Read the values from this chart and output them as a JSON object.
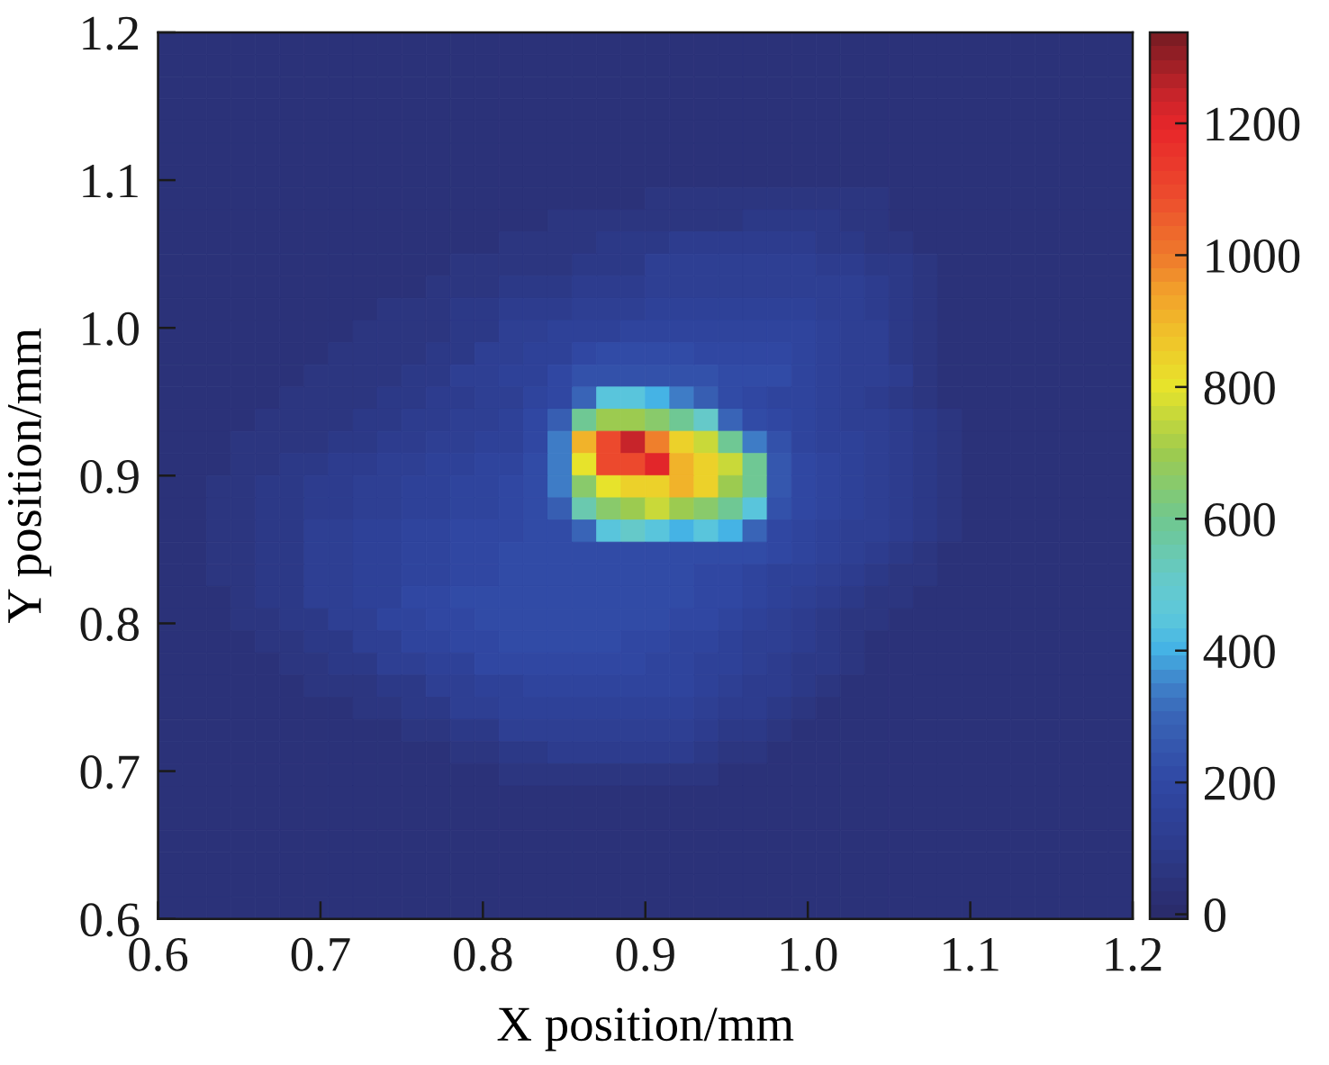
{
  "chart_data": {
    "type": "heatmap",
    "xlabel": "X position/mm",
    "ylabel": "Y position/mm",
    "x": [
      0.6075,
      0.6225,
      0.6375,
      0.6525,
      0.6675,
      0.6825,
      0.6975,
      0.7125,
      0.7275,
      0.7425,
      0.7575,
      0.7725,
      0.7875,
      0.8025,
      0.8175,
      0.8325,
      0.8475,
      0.8625,
      0.8775,
      0.8925,
      0.9075,
      0.9225,
      0.9375,
      0.9525,
      0.9675,
      0.9825,
      0.9975,
      1.0125,
      1.0275,
      1.0425,
      1.0575,
      1.0725,
      1.0875,
      1.1025,
      1.1175,
      1.1325,
      1.1475,
      1.1625,
      1.1775,
      1.1925
    ],
    "xlim": [
      0.6,
      1.2
    ],
    "xticks": [
      0.6,
      0.7,
      0.8,
      0.9,
      {
        "value": 1.0,
        "label": "1.0"
      },
      1.1,
      1.2
    ],
    "ylim": [
      0.6,
      1.2
    ],
    "yticks": [
      0.6,
      0.7,
      0.8,
      0.9,
      {
        "value": 1.0,
        "label": "1.0"
      },
      1.1,
      1.2
    ],
    "clim": [
      -7,
      1338
    ],
    "cticks": [
      0,
      200,
      400,
      600,
      800,
      1000,
      1200
    ],
    "cells": [
      [
        45,
        45,
        45,
        45,
        45,
        45,
        45,
        45,
        45,
        45,
        45,
        45,
        45,
        45,
        45,
        45,
        45,
        45,
        45,
        45,
        45,
        45,
        45,
        45,
        45,
        45,
        45,
        45,
        45,
        45,
        45,
        45,
        45,
        45,
        45,
        45,
        45,
        45,
        45,
        45
      ],
      [
        45,
        45,
        45,
        45,
        45,
        45,
        45,
        45,
        45,
        45,
        45,
        45,
        45,
        45,
        45,
        45,
        45,
        45,
        45,
        45,
        45,
        45,
        45,
        45,
        45,
        45,
        45,
        45,
        45,
        45,
        45,
        45,
        45,
        45,
        45,
        45,
        45,
        45,
        45,
        45
      ],
      [
        45,
        45,
        45,
        45,
        45,
        45,
        45,
        45,
        45,
        45,
        45,
        45,
        45,
        45,
        45,
        45,
        45,
        45,
        45,
        45,
        45,
        45,
        45,
        45,
        45,
        45,
        45,
        45,
        45,
        45,
        45,
        45,
        45,
        45,
        45,
        45,
        45,
        45,
        45,
        45
      ],
      [
        45,
        45,
        45,
        45,
        45,
        45,
        45,
        45,
        45,
        45,
        45,
        45,
        45,
        45,
        45,
        45,
        45,
        45,
        45,
        45,
        45,
        45,
        45,
        45,
        45,
        45,
        45,
        45,
        45,
        45,
        45,
        45,
        45,
        45,
        45,
        45,
        45,
        45,
        45,
        45
      ],
      [
        45,
        45,
        45,
        45,
        45,
        45,
        45,
        45,
        45,
        45,
        45,
        45,
        45,
        45,
        45,
        45,
        45,
        45,
        45,
        45,
        45,
        45,
        45,
        45,
        45,
        45,
        45,
        45,
        45,
        45,
        45,
        45,
        45,
        45,
        45,
        45,
        45,
        45,
        45,
        45
      ],
      [
        45,
        45,
        45,
        45,
        45,
        45,
        45,
        45,
        45,
        45,
        45,
        45,
        45,
        45,
        45,
        45,
        45,
        45,
        45,
        45,
        45,
        45,
        45,
        45,
        50,
        50,
        50,
        50,
        50,
        45,
        45,
        45,
        45,
        45,
        45,
        45,
        45,
        45,
        45,
        45
      ],
      [
        45,
        45,
        45,
        45,
        45,
        45,
        45,
        45,
        45,
        45,
        45,
        45,
        45,
        45,
        45,
        45,
        45,
        45,
        45,
        45,
        50,
        50,
        55,
        55,
        55,
        55,
        55,
        55,
        55,
        50,
        45,
        45,
        45,
        45,
        45,
        45,
        45,
        45,
        45,
        45
      ],
      [
        45,
        45,
        45,
        45,
        45,
        45,
        45,
        45,
        45,
        45,
        45,
        45,
        45,
        45,
        45,
        45,
        50,
        50,
        55,
        55,
        60,
        60,
        60,
        60,
        60,
        60,
        60,
        60,
        60,
        60,
        55,
        50,
        45,
        45,
        45,
        45,
        45,
        45,
        45,
        45
      ],
      [
        45,
        45,
        45,
        45,
        45,
        45,
        45,
        45,
        45,
        45,
        45,
        45,
        45,
        50,
        50,
        55,
        60,
        60,
        60,
        70,
        70,
        70,
        70,
        70,
        80,
        80,
        80,
        80,
        65,
        65,
        55,
        50,
        45,
        45,
        45,
        45,
        45,
        45,
        45,
        45
      ],
      [
        45,
        45,
        45,
        45,
        45,
        45,
        45,
        45,
        45,
        45,
        45,
        45,
        50,
        55,
        60,
        65,
        65,
        65,
        80,
        80,
        80,
        100,
        100,
        100,
        100,
        100,
        100,
        85,
        85,
        65,
        65,
        55,
        50,
        45,
        45,
        45,
        45,
        45,
        45,
        45
      ],
      [
        45,
        45,
        45,
        45,
        45,
        45,
        45,
        45,
        50,
        50,
        50,
        55,
        60,
        65,
        70,
        70,
        70,
        95,
        95,
        95,
        120,
        120,
        120,
        120,
        120,
        120,
        120,
        105,
        105,
        80,
        80,
        60,
        50,
        45,
        45,
        45,
        45,
        45,
        45,
        45
      ],
      [
        45,
        45,
        45,
        45,
        45,
        45,
        45,
        50,
        50,
        55,
        55,
        60,
        65,
        65,
        85,
        85,
        85,
        115,
        115,
        115,
        140,
        140,
        140,
        140,
        140,
        140,
        140,
        125,
        125,
        100,
        80,
        60,
        50,
        45,
        45,
        45,
        45,
        45,
        45,
        45
      ],
      [
        45,
        45,
        45,
        45,
        45,
        45,
        50,
        50,
        55,
        60,
        65,
        65,
        80,
        80,
        100,
        100,
        100,
        135,
        135,
        135,
        160,
        160,
        160,
        160,
        160,
        160,
        160,
        140,
        140,
        115,
        90,
        65,
        50,
        45,
        45,
        45,
        45,
        45,
        45,
        45
      ],
      [
        45,
        45,
        45,
        45,
        45,
        50,
        50,
        55,
        60,
        60,
        75,
        75,
        95,
        95,
        120,
        120,
        150,
        150,
        150,
        180,
        180,
        180,
        180,
        180,
        180,
        180,
        180,
        160,
        140,
        120,
        95,
        70,
        55,
        50,
        45,
        45,
        45,
        45,
        45,
        45
      ],
      [
        45,
        45,
        45,
        45,
        50,
        50,
        55,
        60,
        60,
        75,
        75,
        95,
        95,
        120,
        120,
        150,
        150,
        200,
        210,
        210,
        210,
        210,
        200,
        200,
        200,
        200,
        180,
        160,
        140,
        120,
        95,
        75,
        55,
        50,
        45,
        45,
        45,
        45,
        45,
        45
      ],
      [
        45,
        45,
        45,
        50,
        50,
        55,
        60,
        60,
        75,
        75,
        95,
        95,
        120,
        120,
        150,
        150,
        190,
        230,
        230,
        230,
        230,
        230,
        230,
        210,
        210,
        210,
        180,
        160,
        140,
        120,
        100,
        75,
        55,
        50,
        45,
        45,
        45,
        45,
        45,
        45
      ],
      [
        45,
        45,
        50,
        50,
        55,
        60,
        60,
        75,
        75,
        95,
        95,
        115,
        115,
        140,
        140,
        170,
        200,
        300,
        450,
        450,
        400,
        350,
        270,
        220,
        200,
        180,
        165,
        150,
        135,
        115,
        95,
        75,
        55,
        50,
        45,
        45,
        45,
        45,
        45,
        45
      ],
      [
        45,
        50,
        50,
        55,
        60,
        60,
        75,
        75,
        95,
        95,
        115,
        115,
        140,
        140,
        160,
        190,
        280,
        600,
        700,
        700,
        650,
        600,
        500,
        300,
        220,
        190,
        170,
        155,
        140,
        120,
        100,
        80,
        60,
        50,
        45,
        45,
        45,
        45,
        45,
        45
      ],
      [
        50,
        50,
        55,
        60,
        60,
        75,
        75,
        95,
        95,
        115,
        115,
        140,
        140,
        160,
        160,
        200,
        330,
        900,
        1100,
        1250,
        1000,
        850,
        750,
        600,
        350,
        230,
        180,
        160,
        145,
        125,
        105,
        85,
        65,
        50,
        45,
        45,
        45,
        45,
        45,
        45
      ],
      [
        50,
        50,
        55,
        65,
        65,
        80,
        80,
        100,
        100,
        120,
        120,
        145,
        145,
        165,
        165,
        210,
        330,
        800,
        1100,
        1100,
        1200,
        900,
        850,
        750,
        600,
        260,
        200,
        165,
        150,
        130,
        110,
        90,
        70,
        50,
        45,
        45,
        45,
        45,
        45,
        45
      ],
      [
        50,
        55,
        65,
        65,
        80,
        80,
        100,
        100,
        125,
        125,
        150,
        150,
        170,
        170,
        185,
        210,
        330,
        650,
        800,
        850,
        850,
        900,
        850,
        700,
        600,
        260,
        200,
        170,
        150,
        130,
        110,
        90,
        70,
        50,
        45,
        45,
        45,
        45,
        45,
        45
      ],
      [
        50,
        55,
        70,
        70,
        90,
        90,
        110,
        110,
        135,
        135,
        160,
        160,
        180,
        180,
        195,
        210,
        280,
        550,
        650,
        700,
        750,
        700,
        650,
        600,
        450,
        230,
        190,
        165,
        145,
        125,
        105,
        85,
        65,
        50,
        45,
        45,
        45,
        45,
        45,
        45
      ],
      [
        50,
        55,
        70,
        70,
        95,
        95,
        120,
        120,
        145,
        145,
        170,
        170,
        190,
        190,
        200,
        205,
        210,
        300,
        450,
        500,
        450,
        400,
        450,
        400,
        300,
        200,
        180,
        160,
        140,
        120,
        100,
        80,
        60,
        50,
        45,
        45,
        45,
        45,
        45,
        45
      ],
      [
        50,
        55,
        70,
        70,
        95,
        95,
        125,
        125,
        150,
        150,
        175,
        175,
        195,
        195,
        205,
        205,
        215,
        215,
        215,
        220,
        220,
        220,
        220,
        205,
        205,
        190,
        170,
        150,
        130,
        110,
        90,
        70,
        55,
        50,
        45,
        45,
        45,
        45,
        45,
        45
      ],
      [
        50,
        55,
        65,
        65,
        90,
        90,
        125,
        125,
        155,
        155,
        180,
        180,
        200,
        200,
        210,
        210,
        210,
        210,
        205,
        205,
        205,
        205,
        190,
        190,
        175,
        160,
        145,
        125,
        110,
        90,
        75,
        60,
        50,
        45,
        45,
        45,
        45,
        45,
        45,
        45
      ],
      [
        45,
        50,
        55,
        65,
        85,
        85,
        120,
        120,
        155,
        155,
        185,
        185,
        205,
        205,
        215,
        215,
        215,
        215,
        215,
        205,
        205,
        205,
        185,
        185,
        165,
        145,
        125,
        105,
        90,
        75,
        60,
        50,
        45,
        45,
        45,
        45,
        45,
        45,
        45,
        45
      ],
      [
        45,
        50,
        55,
        65,
        65,
        90,
        90,
        125,
        125,
        165,
        165,
        195,
        195,
        215,
        215,
        215,
        215,
        215,
        215,
        205,
        205,
        185,
        185,
        165,
        145,
        125,
        105,
        90,
        75,
        60,
        50,
        45,
        45,
        45,
        45,
        45,
        45,
        45,
        45,
        45
      ],
      [
        45,
        45,
        50,
        55,
        65,
        65,
        90,
        90,
        125,
        125,
        165,
        165,
        195,
        195,
        210,
        210,
        210,
        210,
        210,
        200,
        200,
        180,
        180,
        160,
        140,
        120,
        100,
        85,
        70,
        55,
        50,
        45,
        45,
        45,
        45,
        45,
        45,
        45,
        45,
        45
      ],
      [
        45,
        45,
        45,
        50,
        55,
        65,
        65,
        90,
        90,
        125,
        125,
        160,
        160,
        185,
        185,
        195,
        195,
        195,
        195,
        195,
        180,
        180,
        160,
        145,
        125,
        110,
        95,
        80,
        65,
        55,
        50,
        45,
        45,
        45,
        45,
        45,
        45,
        45,
        45,
        45
      ],
      [
        45,
        45,
        45,
        45,
        50,
        55,
        60,
        65,
        65,
        95,
        95,
        130,
        130,
        160,
        160,
        175,
        175,
        175,
        175,
        175,
        165,
        165,
        145,
        130,
        115,
        100,
        85,
        70,
        55,
        50,
        45,
        45,
        45,
        45,
        45,
        45,
        45,
        45,
        45,
        45
      ],
      [
        45,
        45,
        45,
        45,
        45,
        50,
        55,
        55,
        60,
        60,
        90,
        90,
        120,
        120,
        145,
        145,
        155,
        155,
        155,
        155,
        145,
        145,
        130,
        115,
        100,
        85,
        70,
        55,
        50,
        45,
        45,
        45,
        45,
        45,
        45,
        45,
        45,
        45,
        45,
        45
      ],
      [
        45,
        45,
        45,
        45,
        45,
        45,
        50,
        50,
        55,
        55,
        65,
        65,
        95,
        95,
        120,
        120,
        130,
        130,
        130,
        130,
        125,
        125,
        110,
        95,
        85,
        70,
        55,
        50,
        45,
        45,
        45,
        45,
        45,
        45,
        45,
        45,
        45,
        45,
        45,
        45
      ],
      [
        45,
        45,
        45,
        45,
        45,
        45,
        45,
        45,
        50,
        50,
        55,
        55,
        65,
        65,
        90,
        90,
        105,
        105,
        105,
        105,
        100,
        100,
        90,
        75,
        65,
        55,
        50,
        45,
        45,
        45,
        45,
        45,
        45,
        45,
        45,
        45,
        45,
        45,
        45,
        45
      ],
      [
        45,
        45,
        45,
        45,
        45,
        45,
        45,
        45,
        45,
        45,
        50,
        50,
        55,
        55,
        60,
        60,
        75,
        75,
        75,
        75,
        75,
        75,
        65,
        55,
        50,
        45,
        45,
        45,
        45,
        45,
        45,
        45,
        45,
        45,
        45,
        45,
        45,
        45,
        45,
        45
      ],
      [
        45,
        45,
        45,
        45,
        45,
        45,
        45,
        45,
        45,
        45,
        45,
        45,
        50,
        50,
        50,
        50,
        55,
        55,
        55,
        55,
        55,
        55,
        50,
        50,
        45,
        45,
        45,
        45,
        45,
        45,
        45,
        45,
        45,
        45,
        45,
        45,
        45,
        45,
        45,
        45
      ],
      [
        45,
        45,
        45,
        45,
        45,
        45,
        45,
        45,
        45,
        45,
        45,
        45,
        45,
        45,
        45,
        45,
        45,
        45,
        45,
        45,
        45,
        45,
        45,
        45,
        45,
        45,
        45,
        45,
        45,
        45,
        45,
        45,
        45,
        45,
        45,
        45,
        45,
        45,
        45,
        45
      ],
      [
        45,
        45,
        45,
        45,
        45,
        45,
        45,
        45,
        45,
        45,
        45,
        45,
        45,
        45,
        45,
        45,
        45,
        45,
        45,
        45,
        45,
        45,
        45,
        45,
        45,
        45,
        45,
        45,
        45,
        45,
        45,
        45,
        45,
        45,
        45,
        45,
        45,
        45,
        45,
        45
      ],
      [
        45,
        45,
        45,
        45,
        45,
        45,
        45,
        45,
        45,
        45,
        45,
        45,
        45,
        45,
        45,
        45,
        45,
        45,
        45,
        45,
        45,
        45,
        45,
        45,
        45,
        45,
        45,
        45,
        45,
        45,
        45,
        45,
        45,
        45,
        45,
        45,
        45,
        45,
        45,
        45
      ],
      [
        45,
        45,
        45,
        45,
        45,
        45,
        45,
        45,
        45,
        45,
        45,
        45,
        45,
        45,
        45,
        45,
        45,
        45,
        45,
        45,
        45,
        45,
        45,
        45,
        45,
        45,
        45,
        45,
        45,
        45,
        45,
        45,
        45,
        45,
        45,
        45,
        45,
        45,
        45,
        45
      ],
      [
        45,
        45,
        45,
        45,
        45,
        45,
        45,
        45,
        45,
        45,
        45,
        45,
        45,
        45,
        45,
        45,
        45,
        45,
        45,
        45,
        45,
        45,
        45,
        45,
        45,
        45,
        45,
        45,
        45,
        45,
        45,
        45,
        45,
        45,
        45,
        45,
        45,
        45,
        45,
        45
      ]
    ]
  }
}
